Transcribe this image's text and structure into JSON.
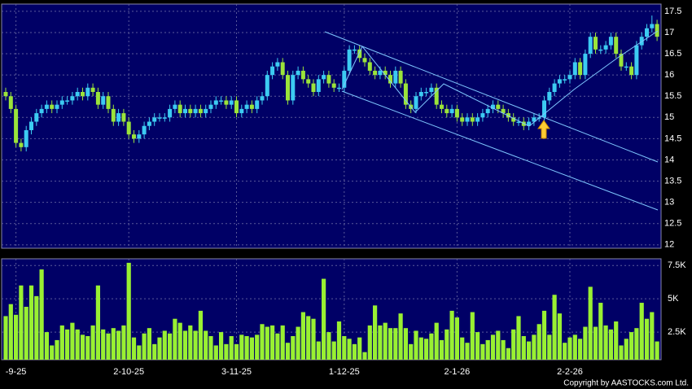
{
  "chart_data": [
    {
      "type": "candlestick",
      "categories": [
        null,
        null,
        "-9-25",
        null,
        null,
        null,
        null,
        null,
        null,
        null,
        null,
        null,
        null,
        null,
        null,
        null,
        null,
        null,
        null,
        null,
        null,
        null,
        null,
        null,
        "2-10-25",
        null,
        null,
        null,
        null,
        null,
        null,
        null,
        null,
        null,
        null,
        null,
        null,
        null,
        null,
        null,
        null,
        null,
        null,
        null,
        null,
        "3-11-25",
        null,
        null,
        null,
        null,
        null,
        null,
        null,
        null,
        null,
        null,
        null,
        null,
        null,
        null,
        null,
        null,
        null,
        null,
        null,
        null,
        "1-12-25",
        null,
        null,
        null,
        null,
        null,
        null,
        null,
        null,
        null,
        null,
        null,
        null,
        null,
        null,
        null,
        null,
        null,
        null,
        null,
        null,
        null,
        "2-1-26",
        null,
        null,
        null,
        null,
        null,
        null,
        null,
        null,
        null,
        null,
        null,
        null,
        null,
        null,
        null,
        null,
        null,
        null,
        null,
        null,
        null,
        "2-2-26",
        null,
        null,
        null,
        null,
        null,
        null,
        null,
        null,
        null,
        null,
        null,
        null,
        null,
        null,
        null,
        null,
        null
      ],
      "open": [
        15.6,
        15.5,
        15.2,
        14.4,
        14.3,
        14.7,
        14.9,
        15.1,
        15.2,
        15.3,
        15.2,
        15.3,
        15.4,
        15.4,
        15.5,
        15.6,
        15.5,
        15.7,
        15.6,
        15.3,
        15.5,
        15.2,
        14.9,
        15.1,
        14.9,
        14.6,
        14.5,
        14.6,
        14.8,
        14.9,
        15.0,
        15.0,
        15.0,
        15.2,
        15.3,
        15.1,
        15.2,
        15.1,
        15.2,
        15.1,
        15.2,
        15.3,
        15.4,
        15.4,
        15.3,
        15.4,
        15.1,
        15.2,
        15.3,
        15.2,
        15.4,
        15.5,
        16.0,
        16.2,
        16.3,
        16.0,
        15.4,
        16.0,
        16.1,
        15.9,
        15.8,
        15.6,
        15.9,
        16.0,
        15.8,
        15.7,
        15.7,
        16.1,
        16.6,
        16.6,
        16.4,
        16.3,
        16.1,
        16.0,
        16.1,
        16.0,
        15.8,
        16.1,
        15.8,
        15.3,
        15.2,
        15.5,
        15.6,
        15.6,
        15.7,
        15.3,
        15.2,
        15.1,
        15.2,
        15.0,
        14.9,
        15.0,
        14.9,
        15.0,
        15.1,
        15.2,
        15.3,
        15.2,
        15.1,
        15.0,
        14.9,
        14.9,
        14.8,
        14.9,
        15.0,
        15.0,
        15.4,
        15.6,
        15.8,
        15.9,
        15.9,
        16.0,
        16.3,
        16.0,
        16.5,
        16.9,
        16.6,
        16.6,
        16.7,
        16.9,
        16.5,
        16.2,
        16.2,
        16.0,
        16.7,
        16.9,
        17.1,
        17.2
      ],
      "high": [
        15.7,
        15.6,
        15.3,
        14.5,
        14.8,
        15.0,
        15.2,
        15.3,
        15.4,
        15.4,
        15.4,
        15.5,
        15.5,
        15.6,
        15.7,
        15.7,
        15.8,
        15.8,
        15.7,
        15.6,
        15.6,
        15.3,
        15.2,
        15.2,
        15.0,
        14.7,
        14.7,
        14.9,
        15.0,
        15.1,
        15.1,
        15.1,
        15.3,
        15.4,
        15.4,
        15.3,
        15.3,
        15.3,
        15.3,
        15.3,
        15.4,
        15.5,
        15.5,
        15.5,
        15.5,
        15.5,
        15.3,
        15.4,
        15.4,
        15.5,
        15.6,
        16.1,
        16.3,
        16.4,
        16.4,
        16.1,
        16.1,
        16.2,
        16.2,
        16.0,
        15.9,
        16.0,
        16.1,
        16.1,
        15.9,
        15.8,
        16.2,
        16.7,
        16.7,
        16.7,
        16.5,
        16.4,
        16.2,
        16.2,
        16.2,
        16.1,
        16.2,
        16.2,
        15.9,
        15.4,
        15.6,
        15.7,
        15.7,
        15.8,
        15.8,
        15.4,
        15.3,
        15.3,
        15.3,
        15.1,
        15.1,
        15.1,
        15.1,
        15.2,
        15.3,
        15.4,
        15.4,
        15.3,
        15.2,
        15.1,
        15.0,
        15.0,
        15.0,
        15.1,
        15.1,
        15.5,
        15.7,
        15.9,
        16.0,
        16.0,
        16.1,
        16.4,
        16.4,
        16.6,
        17.0,
        17.0,
        16.7,
        16.8,
        17.0,
        17.0,
        16.6,
        16.3,
        16.3,
        16.8,
        17.0,
        17.2,
        17.4,
        17.3
      ],
      "low": [
        15.4,
        15.1,
        14.3,
        14.2,
        14.2,
        14.6,
        14.8,
        15.0,
        15.1,
        15.1,
        15.1,
        15.2,
        15.3,
        15.3,
        15.4,
        15.4,
        15.4,
        15.5,
        15.2,
        15.2,
        15.1,
        14.8,
        14.8,
        14.8,
        14.5,
        14.4,
        14.4,
        14.5,
        14.7,
        14.8,
        14.9,
        14.9,
        14.9,
        15.1,
        15.0,
        15.0,
        15.0,
        15.0,
        15.0,
        15.0,
        15.1,
        15.2,
        15.3,
        15.2,
        15.2,
        15.0,
        15.0,
        15.1,
        15.1,
        15.1,
        15.3,
        15.4,
        15.9,
        16.1,
        15.9,
        15.3,
        15.3,
        15.9,
        15.8,
        15.7,
        15.5,
        15.5,
        15.8,
        15.7,
        15.6,
        15.6,
        15.6,
        16.0,
        16.5,
        16.3,
        16.2,
        16.0,
        15.9,
        15.9,
        15.9,
        15.7,
        15.7,
        15.7,
        15.2,
        15.1,
        15.1,
        15.4,
        15.5,
        15.5,
        15.2,
        15.1,
        15.0,
        15.0,
        14.9,
        14.8,
        14.8,
        14.8,
        14.8,
        14.9,
        15.0,
        15.1,
        15.1,
        15.0,
        14.9,
        14.8,
        14.8,
        14.7,
        14.7,
        14.8,
        14.9,
        14.9,
        15.3,
        15.5,
        15.7,
        15.8,
        15.8,
        15.9,
        15.9,
        15.9,
        16.4,
        16.5,
        16.5,
        16.5,
        16.6,
        16.4,
        16.1,
        16.1,
        15.9,
        15.9,
        16.6,
        16.8,
        17.0,
        16.8
      ],
      "close": [
        15.5,
        15.2,
        14.4,
        14.3,
        14.7,
        14.9,
        15.1,
        15.2,
        15.3,
        15.2,
        15.3,
        15.4,
        15.4,
        15.5,
        15.6,
        15.5,
        15.7,
        15.6,
        15.3,
        15.5,
        15.2,
        14.9,
        15.1,
        14.9,
        14.6,
        14.5,
        14.6,
        14.8,
        14.9,
        15.0,
        15.0,
        15.0,
        15.2,
        15.3,
        15.1,
        15.2,
        15.1,
        15.2,
        15.1,
        15.2,
        15.3,
        15.4,
        15.4,
        15.3,
        15.4,
        15.1,
        15.2,
        15.3,
        15.2,
        15.4,
        15.5,
        16.0,
        16.2,
        16.3,
        16.0,
        15.4,
        16.0,
        16.1,
        15.9,
        15.8,
        15.6,
        15.9,
        16.0,
        15.8,
        15.7,
        15.7,
        16.1,
        16.6,
        16.6,
        16.4,
        16.3,
        16.1,
        16.0,
        16.1,
        16.0,
        15.8,
        16.1,
        15.8,
        15.3,
        15.2,
        15.5,
        15.6,
        15.6,
        15.7,
        15.3,
        15.2,
        15.1,
        15.2,
        15.0,
        14.9,
        15.0,
        14.9,
        15.0,
        15.1,
        15.2,
        15.3,
        15.2,
        15.1,
        15.0,
        14.9,
        14.9,
        14.8,
        14.9,
        15.0,
        15.0,
        15.4,
        15.6,
        15.8,
        15.9,
        15.9,
        16.0,
        16.3,
        16.0,
        16.5,
        16.9,
        16.6,
        16.6,
        16.7,
        16.9,
        16.5,
        16.2,
        16.2,
        16.0,
        16.7,
        16.9,
        17.1,
        17.2,
        16.9
      ],
      "up_color": "#3ccbf2",
      "down_color": "#9be43a",
      "ylim": [
        11.92,
        17.67
      ],
      "yticks": [
        12,
        12.5,
        13,
        13.5,
        14,
        14.5,
        15,
        15.5,
        16,
        16.5,
        17,
        17.5
      ],
      "grid": true
    },
    {
      "type": "bar",
      "values": [
        3700,
        4600,
        3800,
        6000,
        4400,
        6000,
        5200,
        7200,
        2500,
        1500,
        1900,
        3000,
        2700,
        3200,
        2700,
        2300,
        2200,
        3000,
        6000,
        2700,
        2400,
        2800,
        2600,
        3000,
        7700,
        2100,
        1500,
        2400,
        2800,
        1600,
        2100,
        2600,
        2400,
        3500,
        3200,
        2600,
        3000,
        2600,
        4100,
        2600,
        2200,
        1500,
        2500,
        1600,
        2200,
        1600,
        2300,
        2200,
        2100,
        2300,
        3100,
        2900,
        3000,
        2400,
        3000,
        1700,
        2200,
        2900,
        4000,
        3700,
        3500,
        1800,
        6500,
        2500,
        1800,
        3300,
        2200,
        2000,
        1600,
        2100,
        1000,
        3000,
        4500,
        3000,
        3200,
        2800,
        2800,
        3900,
        2800,
        1600,
        2600,
        2100,
        2000,
        2400,
        3200,
        1900,
        2700,
        4100,
        3600,
        2100,
        1700,
        4000,
        2500,
        1600,
        1900,
        2300,
        2600,
        1900,
        1300,
        2700,
        3700,
        2200,
        1800,
        2300,
        3100,
        4100,
        2300,
        5300,
        3900,
        1700,
        2100,
        2300,
        2000,
        2900,
        5900,
        2900,
        4700,
        3000,
        2700,
        3300,
        1500,
        2000,
        2500,
        2800,
        4700,
        3500,
        4000,
        1800
      ],
      "color": "#99f032",
      "ylim": [
        430,
        8000
      ],
      "yticks": [
        {
          "value": 2500,
          "label": "2.5K"
        },
        {
          "value": 5000,
          "label": "5K"
        },
        {
          "value": 7500,
          "label": "7.5K"
        }
      ],
      "grid": true
    }
  ],
  "copyright": "Copyright by AASTOCKS.com Ltd."
}
